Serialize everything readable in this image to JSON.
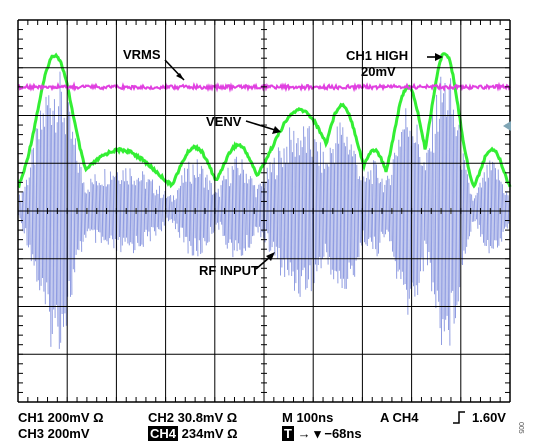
{
  "annotations": {
    "vrms": "VRMS",
    "venv": "VENV",
    "rf_input": "RF INPUT",
    "ch1_high_line1": "CH1 HIGH",
    "ch1_high_line2": "20mV"
  },
  "readout": {
    "ch1": "CH1  200mV Ω",
    "ch2": "CH2  30.8mV Ω",
    "timebase": "M 100ns",
    "trigger": "A CH4",
    "trigger_level": "1.60V",
    "ch3": "CH3  200mV",
    "ch4_label": "CH4",
    "ch4_value": "234mV Ω",
    "t_label": "T",
    "t_offset": "−68ns"
  },
  "colors": {
    "vrms_trace": "#e040e0",
    "venv_trace": "#33ee33",
    "rf_trace": "#6f7fd8",
    "grid": "#000000"
  },
  "figure_id": "005",
  "chart_data": {
    "type": "line",
    "title": "",
    "grid": true,
    "series": [
      {
        "name": "VRMS",
        "values": []
      },
      {
        "name": "VENV",
        "values": []
      },
      {
        "name": "RF INPUT",
        "values": []
      }
    ]
  }
}
